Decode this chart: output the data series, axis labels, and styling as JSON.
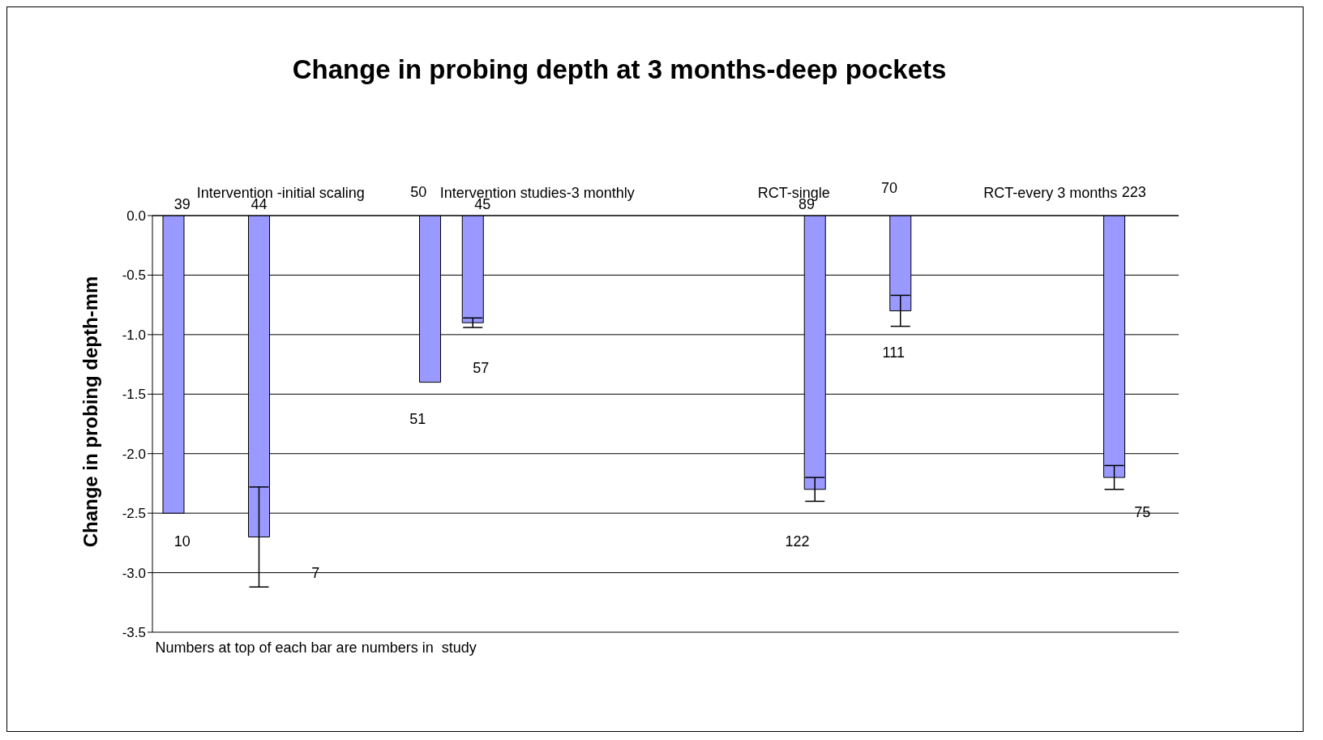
{
  "chart_data": {
    "type": "bar",
    "title": "Change in probing depth at 3 months-deep pockets",
    "ylabel": "Change in probing depth-mm",
    "categories": [
      "Intervention -initial scaling",
      "Intervention studies-3 monthly",
      "RCT-single",
      "RCT-every 3 months"
    ],
    "series": [
      {
        "color": "#9999ff",
        "values": [
          -2.5,
          -1.4,
          null,
          null
        ]
      },
      {
        "color": "#9999ff",
        "values": [
          null,
          -0.9,
          null,
          null
        ],
        "errors": [
          null,
          0.04,
          null,
          null
        ]
      },
      {
        "color": "#9999ff",
        "values": [
          -2.7,
          null,
          null,
          null
        ],
        "errors": [
          0.42,
          null,
          null,
          null
        ]
      },
      {
        "color": "#9999ff",
        "values": [
          null,
          null,
          -2.3,
          null
        ],
        "errors": [
          null,
          null,
          0.1,
          null
        ]
      },
      {
        "color": "#9999ff",
        "values": [
          null,
          null,
          null,
          -2.2
        ],
        "errors": [
          null,
          null,
          null,
          0.1
        ]
      },
      {
        "color": "#9999ff",
        "values": [
          null,
          null,
          -0.8,
          null
        ],
        "errors": [
          null,
          null,
          0.13,
          null
        ]
      }
    ],
    "ylim": [
      -3.5,
      0
    ],
    "yticks": [
      {
        "value": 0,
        "label": "0.0"
      },
      {
        "value": -0.5,
        "label": "-0.5"
      },
      {
        "value": -1,
        "label": "-1.0"
      },
      {
        "value": -1.5,
        "label": "-1.5"
      },
      {
        "value": -2,
        "label": "-2.0"
      },
      {
        "value": -2.5,
        "label": "-2.5"
      },
      {
        "value": -3,
        "label": "-3.0"
      },
      {
        "value": -3.5,
        "label": "-3.5"
      }
    ],
    "grid": "y",
    "annotations": [
      "39",
      "44",
      "50",
      "45",
      "89",
      "70",
      "223",
      "10",
      "7",
      "51",
      "57",
      "122",
      "111",
      "75",
      "Numbers at top of each bar are numbers in  study"
    ]
  }
}
